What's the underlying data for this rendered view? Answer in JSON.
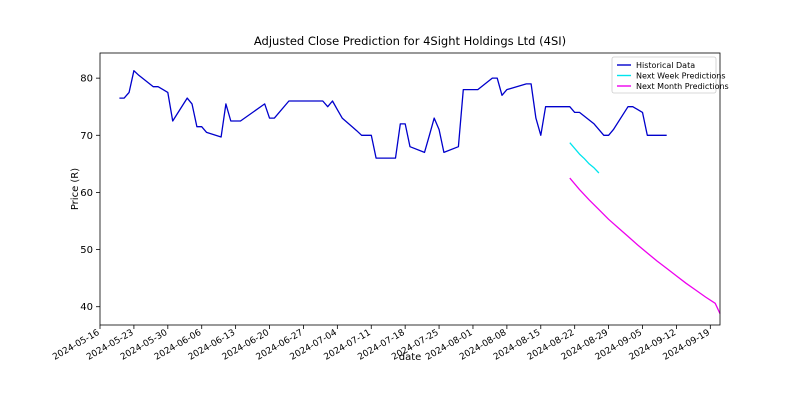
{
  "chart_data": {
    "type": "line",
    "title": "Adjusted Close Prediction for 4Sight Holdings Ltd (4SI)",
    "xlabel": "date",
    "ylabel": "Price (R)",
    "xlim": [
      "2024-05-16",
      "2024-09-21"
    ],
    "ylim": [
      36.8,
      84.4
    ],
    "x_ticks": [
      "2024-05-16",
      "2024-05-23",
      "2024-05-30",
      "2024-06-06",
      "2024-06-13",
      "2024-06-20",
      "2024-06-27",
      "2024-07-04",
      "2024-07-11",
      "2024-07-18",
      "2024-07-25",
      "2024-08-01",
      "2024-08-08",
      "2024-08-15",
      "2024-08-22",
      "2024-08-29",
      "2024-09-05",
      "2024-09-12",
      "2024-09-19"
    ],
    "y_ticks": [
      40,
      50,
      60,
      70,
      80
    ],
    "grid": false,
    "legend_position": "top-right",
    "series": [
      {
        "name": "Historical Data",
        "color": "#0000cc",
        "points": [
          [
            "2024-05-20",
            76.5
          ],
          [
            "2024-05-21",
            76.5
          ],
          [
            "2024-05-22",
            77.5
          ],
          [
            "2024-05-23",
            81.3
          ],
          [
            "2024-05-24",
            80.5
          ],
          [
            "2024-05-27",
            78.5
          ],
          [
            "2024-05-28",
            78.5
          ],
          [
            "2024-05-29",
            78.0
          ],
          [
            "2024-05-30",
            77.5
          ],
          [
            "2024-05-31",
            72.5
          ],
          [
            "2024-06-03",
            76.5
          ],
          [
            "2024-06-04",
            75.5
          ],
          [
            "2024-06-05",
            71.5
          ],
          [
            "2024-06-06",
            71.5
          ],
          [
            "2024-06-07",
            70.5
          ],
          [
            "2024-06-10",
            69.7
          ],
          [
            "2024-06-11",
            75.5
          ],
          [
            "2024-06-12",
            72.5
          ],
          [
            "2024-06-13",
            72.5
          ],
          [
            "2024-06-14",
            72.5
          ],
          [
            "2024-06-19",
            75.5
          ],
          [
            "2024-06-20",
            73.0
          ],
          [
            "2024-06-21",
            73.0
          ],
          [
            "2024-06-24",
            76.0
          ],
          [
            "2024-06-25",
            76.0
          ],
          [
            "2024-06-26",
            76.0
          ],
          [
            "2024-06-27",
            76.0
          ],
          [
            "2024-06-28",
            76.0
          ],
          [
            "2024-07-01",
            76.0
          ],
          [
            "2024-07-02",
            75.0
          ],
          [
            "2024-07-03",
            76.0
          ],
          [
            "2024-07-04",
            74.5
          ],
          [
            "2024-07-05",
            73.0
          ],
          [
            "2024-07-08",
            70.8
          ],
          [
            "2024-07-09",
            70.0
          ],
          [
            "2024-07-10",
            70.0
          ],
          [
            "2024-07-11",
            70.0
          ],
          [
            "2024-07-12",
            66.0
          ],
          [
            "2024-07-15",
            66.0
          ],
          [
            "2024-07-16",
            66.0
          ],
          [
            "2024-07-17",
            72.0
          ],
          [
            "2024-07-18",
            72.0
          ],
          [
            "2024-07-19",
            68.0
          ],
          [
            "2024-07-22",
            67.0
          ],
          [
            "2024-07-23",
            70.0
          ],
          [
            "2024-07-24",
            73.0
          ],
          [
            "2024-07-25",
            71.0
          ],
          [
            "2024-07-26",
            67.0
          ],
          [
            "2024-07-29",
            68.0
          ],
          [
            "2024-07-30",
            78.0
          ],
          [
            "2024-07-31",
            78.0
          ],
          [
            "2024-08-01",
            78.0
          ],
          [
            "2024-08-02",
            78.0
          ],
          [
            "2024-08-05",
            80.0
          ],
          [
            "2024-08-06",
            80.0
          ],
          [
            "2024-08-07",
            77.0
          ],
          [
            "2024-08-08",
            78.0
          ],
          [
            "2024-08-12",
            79.0
          ],
          [
            "2024-08-13",
            79.0
          ],
          [
            "2024-08-14",
            73.0
          ],
          [
            "2024-08-15",
            70.0
          ],
          [
            "2024-08-16",
            75.0
          ],
          [
            "2024-08-19",
            75.0
          ],
          [
            "2024-08-20",
            75.0
          ],
          [
            "2024-08-21",
            75.0
          ],
          [
            "2024-08-22",
            74.0
          ],
          [
            "2024-08-23",
            74.0
          ],
          [
            "2024-08-26",
            72.0
          ],
          [
            "2024-08-27",
            71.0
          ],
          [
            "2024-08-28",
            70.0
          ],
          [
            "2024-08-29",
            70.0
          ],
          [
            "2024-08-30",
            71.0
          ],
          [
            "2024-09-02",
            75.0
          ],
          [
            "2024-09-03",
            75.0
          ],
          [
            "2024-09-04",
            74.5
          ],
          [
            "2024-09-05",
            74.0
          ],
          [
            "2024-09-06",
            70.0
          ],
          [
            "2024-09-09",
            70.0
          ],
          [
            "2024-09-10",
            70.0
          ]
        ]
      },
      {
        "name": "Next Week Predictions",
        "color": "#00e5ee",
        "points": [
          [
            "2024-08-21",
            68.7
          ],
          [
            "2024-08-22",
            67.7
          ],
          [
            "2024-08-23",
            66.7
          ],
          [
            "2024-08-24",
            65.9
          ],
          [
            "2024-08-25",
            65.0
          ],
          [
            "2024-08-26",
            64.3
          ],
          [
            "2024-08-27",
            63.4
          ]
        ]
      },
      {
        "name": "Next Month Predictions",
        "color": "#ee00ee",
        "points": [
          [
            "2024-08-21",
            62.5
          ],
          [
            "2024-08-23",
            60.5
          ],
          [
            "2024-08-25",
            58.7
          ],
          [
            "2024-08-27",
            57.0
          ],
          [
            "2024-08-29",
            55.3
          ],
          [
            "2024-08-31",
            53.8
          ],
          [
            "2024-09-02",
            52.3
          ],
          [
            "2024-09-04",
            50.8
          ],
          [
            "2024-09-06",
            49.4
          ],
          [
            "2024-09-08",
            48.0
          ],
          [
            "2024-09-10",
            46.7
          ],
          [
            "2024-09-12",
            45.4
          ],
          [
            "2024-09-14",
            44.1
          ],
          [
            "2024-09-16",
            42.9
          ],
          [
            "2024-09-18",
            41.7
          ],
          [
            "2024-09-20",
            40.6
          ],
          [
            "2024-09-21",
            38.8
          ]
        ]
      }
    ]
  }
}
